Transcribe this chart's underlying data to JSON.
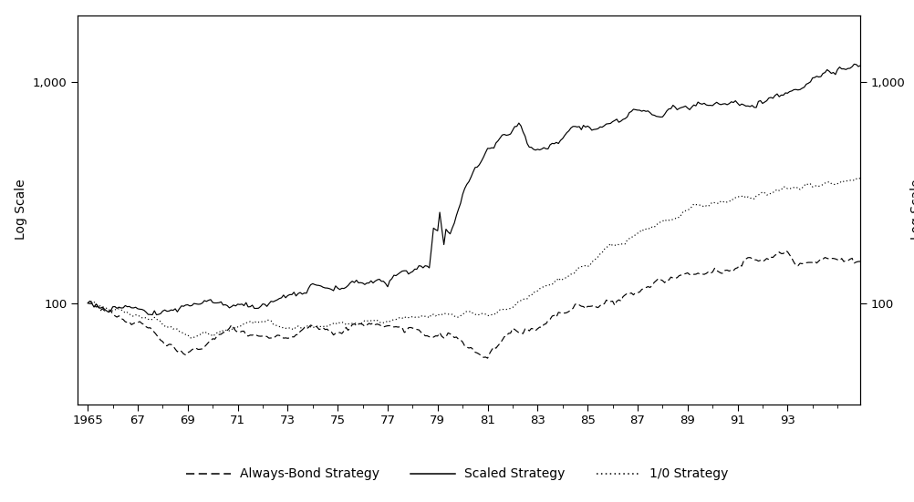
{
  "ylabel_left": "Log Scale",
  "ylabel_right": "Log Scale",
  "x_tick_labels": [
    "1965",
    "67",
    "69",
    "71",
    "73",
    "75",
    "77",
    "79",
    "81",
    "83",
    "85",
    "87",
    "89",
    "91",
    "93"
  ],
  "ylim": [
    35,
    2000
  ],
  "yticklabels": [
    "100",
    "1,000"
  ],
  "background_color": "#ffffff",
  "line_color": "#000000",
  "legend_entries": [
    {
      "label": "Always-Bond Strategy",
      "linestyle": "dashed"
    },
    {
      "label": "Scaled Strategy",
      "linestyle": "solid"
    },
    {
      "label": "1/0 Strategy",
      "linestyle": "dotted"
    }
  ]
}
